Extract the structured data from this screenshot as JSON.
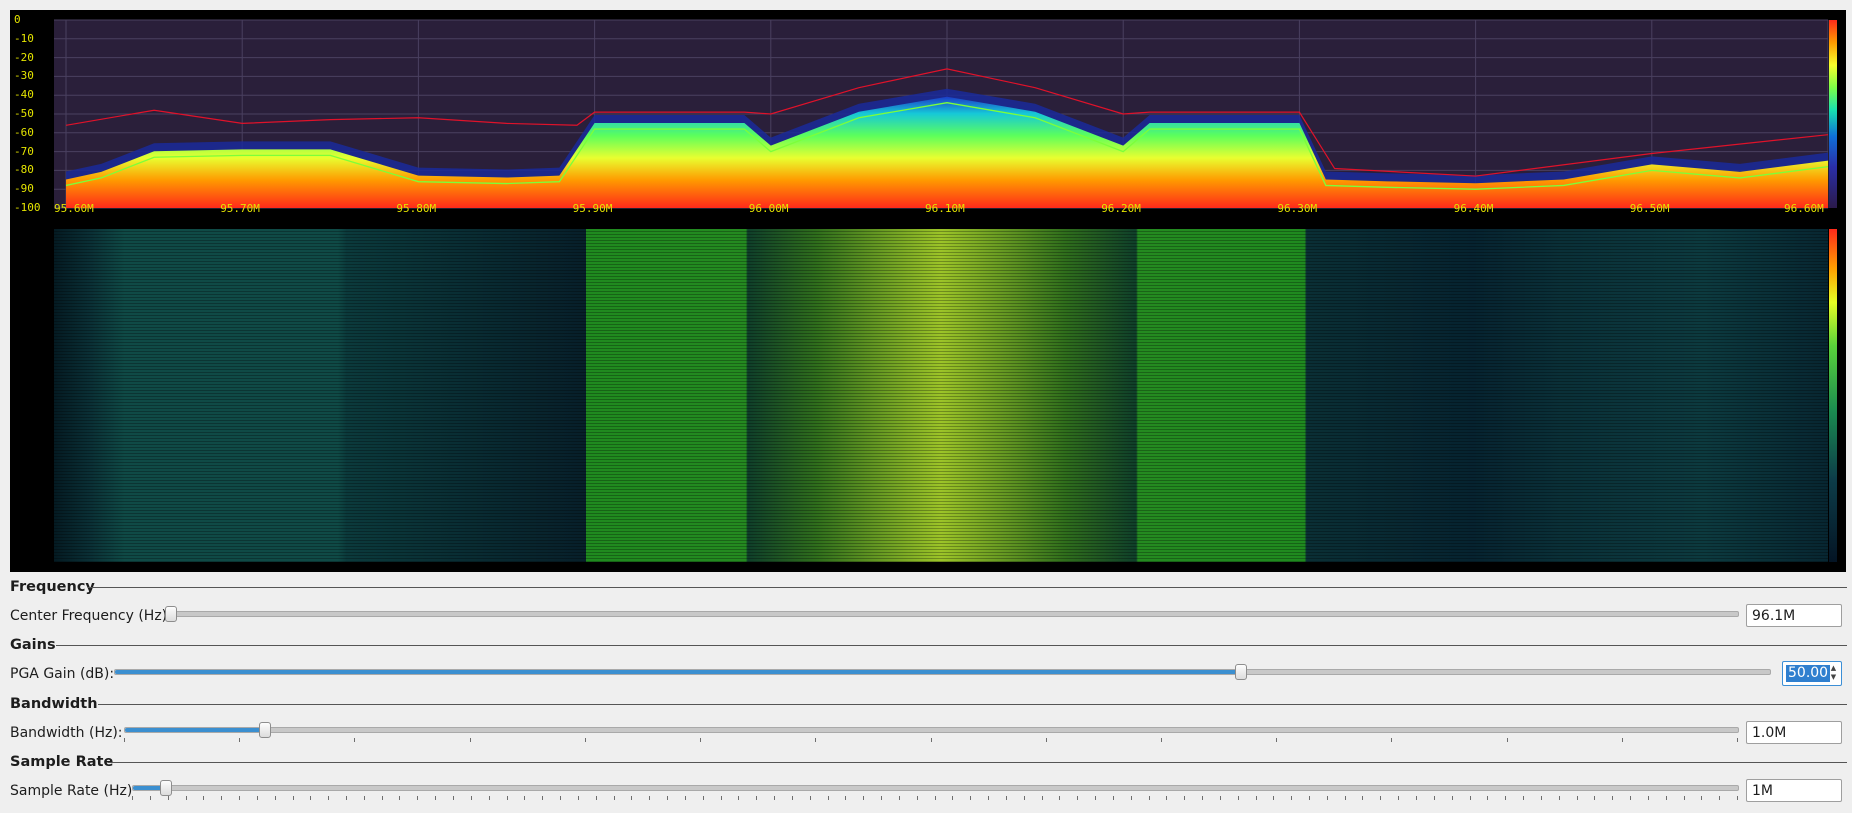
{
  "spectrum": {
    "y_ticks": [
      "0",
      "-10",
      "-20",
      "-30",
      "-40",
      "-50",
      "-60",
      "-70",
      "-80",
      "-90",
      "-100"
    ],
    "x_ticks": [
      "95.60M",
      "95.70M",
      "95.80M",
      "95.90M",
      "96.00M",
      "96.10M",
      "96.20M",
      "96.30M",
      "96.40M",
      "96.50M",
      "96.60M"
    ]
  },
  "chart_data": {
    "type": "line",
    "title": "",
    "xlabel": "",
    "ylabel": "",
    "xlim": [
      95.6,
      96.6
    ],
    "ylim": [
      -100,
      0
    ],
    "grid": true,
    "series": [
      {
        "x": [
          95.6,
          95.62,
          95.65,
          95.7,
          95.75,
          95.8,
          95.85,
          95.88,
          95.9,
          95.95,
          95.985,
          96.0,
          96.05,
          96.1,
          96.15,
          96.2,
          96.215,
          96.25,
          96.3,
          96.315,
          96.35,
          96.4,
          96.45,
          96.5,
          96.55,
          96.6
        ],
        "y": [
          -88,
          -84,
          -73,
          -72,
          -72,
          -86,
          -87,
          -86,
          -58,
          -58,
          -58,
          -70,
          -52,
          -44,
          -52,
          -70,
          -58,
          -58,
          -58,
          -88,
          -89,
          -90,
          -88,
          -80,
          -84,
          -78
        ]
      },
      {
        "x": [
          95.6,
          95.65,
          95.7,
          95.75,
          95.8,
          95.85,
          95.89,
          95.9,
          95.95,
          95.985,
          96.0,
          96.05,
          96.1,
          96.15,
          96.2,
          96.215,
          96.25,
          96.3,
          96.32,
          96.4,
          96.5,
          96.6
        ],
        "y": [
          -56,
          -48,
          -55,
          -53,
          -52,
          -55,
          -56,
          -49,
          -49,
          -49,
          -50,
          -36,
          -26,
          -36,
          -50,
          -49,
          -49,
          -49,
          -79,
          -83,
          -71,
          -61
        ]
      }
    ]
  },
  "colors": {
    "avg_trace": "#7cff3a",
    "max_trace": "#e0122a",
    "tick_text": "#e4e400",
    "slider_fill": "#3b8fd0"
  },
  "controls": {
    "frequency": {
      "title": "Frequency",
      "label": "Center Frequency (Hz)",
      "value": "96.1M",
      "level": 0.0
    },
    "gains": {
      "title": "Gains",
      "label": "PGA Gain (dB):",
      "value": "50.00",
      "level": 0.68
    },
    "bandwidth": {
      "title": "Bandwidth",
      "label": "Bandwidth (Hz):",
      "value": "1.0M",
      "level": 0.086
    },
    "sample_rate": {
      "title": "Sample Rate",
      "label": "Sample Rate (Hz)",
      "value": "1M",
      "level": 0.02
    }
  }
}
